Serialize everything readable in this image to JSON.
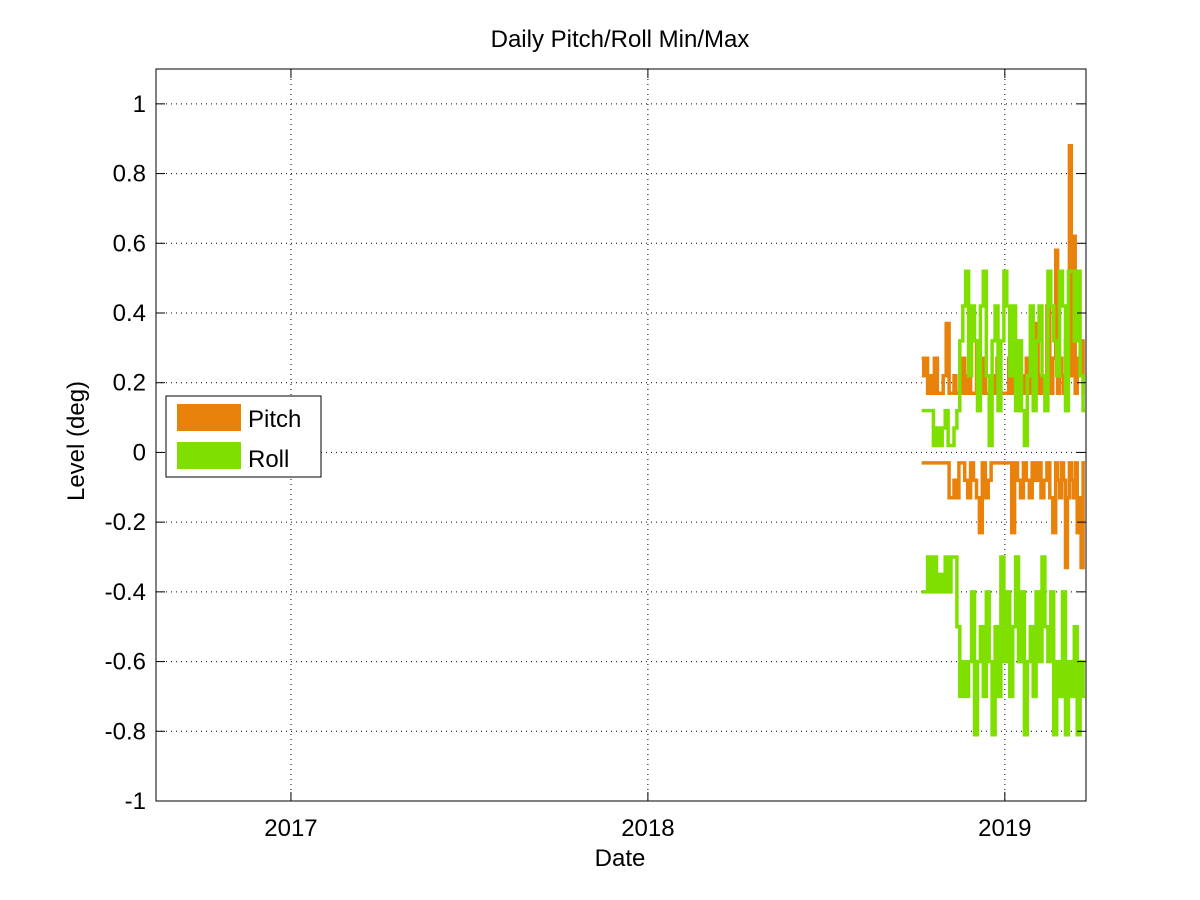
{
  "chart_data": {
    "type": "line",
    "title": "Daily Pitch/Roll Min/Max",
    "xlabel": "Date",
    "ylabel": "Level (deg)",
    "xlim": [
      "2016-08-16",
      "2019-03-25"
    ],
    "ylim": [
      -1,
      1.1
    ],
    "x_ticks": [
      "2017",
      "2018",
      "2019"
    ],
    "x_tick_dates": [
      "2017-01-01",
      "2018-01-01",
      "2019-01-01"
    ],
    "y_ticks": [
      "-1",
      "-0.8",
      "-0.6",
      "-0.4",
      "-0.2",
      "0",
      "0.2",
      "0.4",
      "0.6",
      "0.8",
      "1"
    ],
    "y_tick_values": [
      -1,
      -0.8,
      -0.6,
      -0.4,
      -0.2,
      0,
      0.2,
      0.4,
      0.6,
      0.8,
      1
    ],
    "grid": true,
    "legend_position": "left-center",
    "series": [
      {
        "name": "Pitch",
        "color": "#E8820A",
        "x": [
          "2018-10-08",
          "2018-10-10",
          "2018-10-12",
          "2018-10-14",
          "2018-10-16",
          "2018-10-18",
          "2018-10-21",
          "2018-10-24",
          "2018-10-27",
          "2018-10-30",
          "2018-11-02",
          "2018-11-05",
          "2018-11-08",
          "2018-11-10",
          "2018-11-12",
          "2018-11-15",
          "2018-11-18",
          "2018-11-21",
          "2018-11-24",
          "2018-11-27",
          "2018-11-30",
          "2018-12-03",
          "2018-12-06",
          "2018-12-09",
          "2018-12-12",
          "2018-12-15",
          "2018-12-18",
          "2018-12-21",
          "2018-12-24",
          "2018-12-27",
          "2018-12-30",
          "2019-01-02",
          "2019-01-05",
          "2019-01-08",
          "2019-01-11",
          "2019-01-14",
          "2019-01-17",
          "2019-01-20",
          "2019-01-23",
          "2019-01-26",
          "2019-01-29",
          "2019-02-01",
          "2019-02-04",
          "2019-02-07",
          "2019-02-10",
          "2019-02-13",
          "2019-02-16",
          "2019-02-19",
          "2019-02-22",
          "2019-02-24",
          "2019-02-26",
          "2019-02-28",
          "2019-03-02",
          "2019-03-04",
          "2019-03-06",
          "2019-03-08",
          "2019-03-10",
          "2019-03-12",
          "2019-03-14",
          "2019-03-16",
          "2019-03-18",
          "2019-03-20",
          "2019-03-22"
        ],
        "max": [
          0.27,
          0.22,
          0.27,
          0.17,
          0.22,
          0.17,
          0.27,
          0.17,
          0.17,
          0.22,
          0.37,
          0.17,
          0.17,
          0.22,
          0.17,
          0.17,
          0.27,
          0.17,
          0.22,
          0.17,
          0.17,
          0.32,
          0.17,
          0.27,
          0.17,
          0.17,
          0.22,
          0.17,
          0.27,
          0.17,
          0.17,
          0.17,
          0.27,
          0.17,
          0.32,
          0.17,
          0.22,
          0.17,
          0.27,
          0.17,
          0.22,
          0.37,
          0.17,
          0.22,
          0.17,
          0.42,
          0.17,
          0.27,
          0.58,
          0.17,
          0.27,
          0.22,
          0.17,
          0.32,
          0.42,
          0.88,
          0.22,
          0.62,
          0.17,
          0.27,
          0.22,
          0.32,
          0.17
        ],
        "min": [
          -0.03,
          -0.03,
          -0.03,
          -0.03,
          -0.03,
          -0.03,
          -0.03,
          -0.03,
          -0.03,
          -0.03,
          -0.03,
          -0.13,
          -0.13,
          -0.08,
          -0.13,
          -0.03,
          -0.03,
          -0.08,
          -0.13,
          -0.03,
          -0.08,
          -0.13,
          -0.23,
          -0.03,
          -0.13,
          -0.08,
          -0.03,
          -0.03,
          -0.03,
          -0.03,
          -0.03,
          -0.03,
          -0.03,
          -0.23,
          -0.03,
          -0.08,
          -0.13,
          -0.03,
          -0.08,
          -0.13,
          -0.03,
          -0.08,
          -0.03,
          -0.13,
          -0.08,
          -0.03,
          -0.13,
          -0.23,
          -0.03,
          -0.08,
          -0.13,
          -0.03,
          -0.08,
          -0.33,
          -0.13,
          -0.03,
          -0.08,
          -0.13,
          -0.03,
          -0.23,
          -0.13,
          -0.33,
          -0.03
        ]
      },
      {
        "name": "Roll",
        "color": "#7FE000",
        "x": [
          "2018-10-08",
          "2018-10-11",
          "2018-10-14",
          "2018-10-17",
          "2018-10-20",
          "2018-10-23",
          "2018-10-26",
          "2018-10-29",
          "2018-11-01",
          "2018-11-04",
          "2018-11-07",
          "2018-11-10",
          "2018-11-13",
          "2018-11-16",
          "2018-11-19",
          "2018-11-22",
          "2018-11-25",
          "2018-11-28",
          "2018-12-01",
          "2018-12-04",
          "2018-12-07",
          "2018-12-10",
          "2018-12-13",
          "2018-12-16",
          "2018-12-19",
          "2018-12-22",
          "2018-12-25",
          "2018-12-28",
          "2018-12-31",
          "2019-01-03",
          "2019-01-06",
          "2019-01-09",
          "2019-01-12",
          "2019-01-15",
          "2019-01-18",
          "2019-01-21",
          "2019-01-24",
          "2019-01-27",
          "2019-01-30",
          "2019-02-02",
          "2019-02-05",
          "2019-02-08",
          "2019-02-11",
          "2019-02-14",
          "2019-02-17",
          "2019-02-20",
          "2019-02-23",
          "2019-02-26",
          "2019-03-01",
          "2019-03-04",
          "2019-03-07",
          "2019-03-10",
          "2019-03-13",
          "2019-03-16",
          "2019-03-19",
          "2019-03-22"
        ],
        "max": [
          0.12,
          0.12,
          0.12,
          0.12,
          0.02,
          0.07,
          0.02,
          0.07,
          0.12,
          0.02,
          0.02,
          0.07,
          0.12,
          0.32,
          0.42,
          0.52,
          0.22,
          0.42,
          0.32,
          0.12,
          0.42,
          0.52,
          0.22,
          0.02,
          0.32,
          0.42,
          0.12,
          0.32,
          0.52,
          0.42,
          0.22,
          0.42,
          0.12,
          0.32,
          0.12,
          0.02,
          0.22,
          0.42,
          0.12,
          0.32,
          0.42,
          0.22,
          0.12,
          0.52,
          0.42,
          0.32,
          0.22,
          0.52,
          0.42,
          0.12,
          0.52,
          0.52,
          0.32,
          0.52,
          0.22,
          0.12
        ],
        "min": [
          -0.4,
          -0.4,
          -0.3,
          -0.4,
          -0.3,
          -0.4,
          -0.35,
          -0.4,
          -0.3,
          -0.4,
          -0.3,
          -0.3,
          -0.5,
          -0.7,
          -0.6,
          -0.7,
          -0.6,
          -0.4,
          -0.81,
          -0.6,
          -0.5,
          -0.7,
          -0.4,
          -0.6,
          -0.81,
          -0.5,
          -0.7,
          -0.3,
          -0.6,
          -0.4,
          -0.7,
          -0.5,
          -0.3,
          -0.6,
          -0.4,
          -0.81,
          -0.6,
          -0.5,
          -0.7,
          -0.4,
          -0.6,
          -0.3,
          -0.5,
          -0.6,
          -0.4,
          -0.81,
          -0.6,
          -0.7,
          -0.4,
          -0.81,
          -0.6,
          -0.7,
          -0.5,
          -0.81,
          -0.6,
          -0.7
        ]
      }
    ]
  }
}
